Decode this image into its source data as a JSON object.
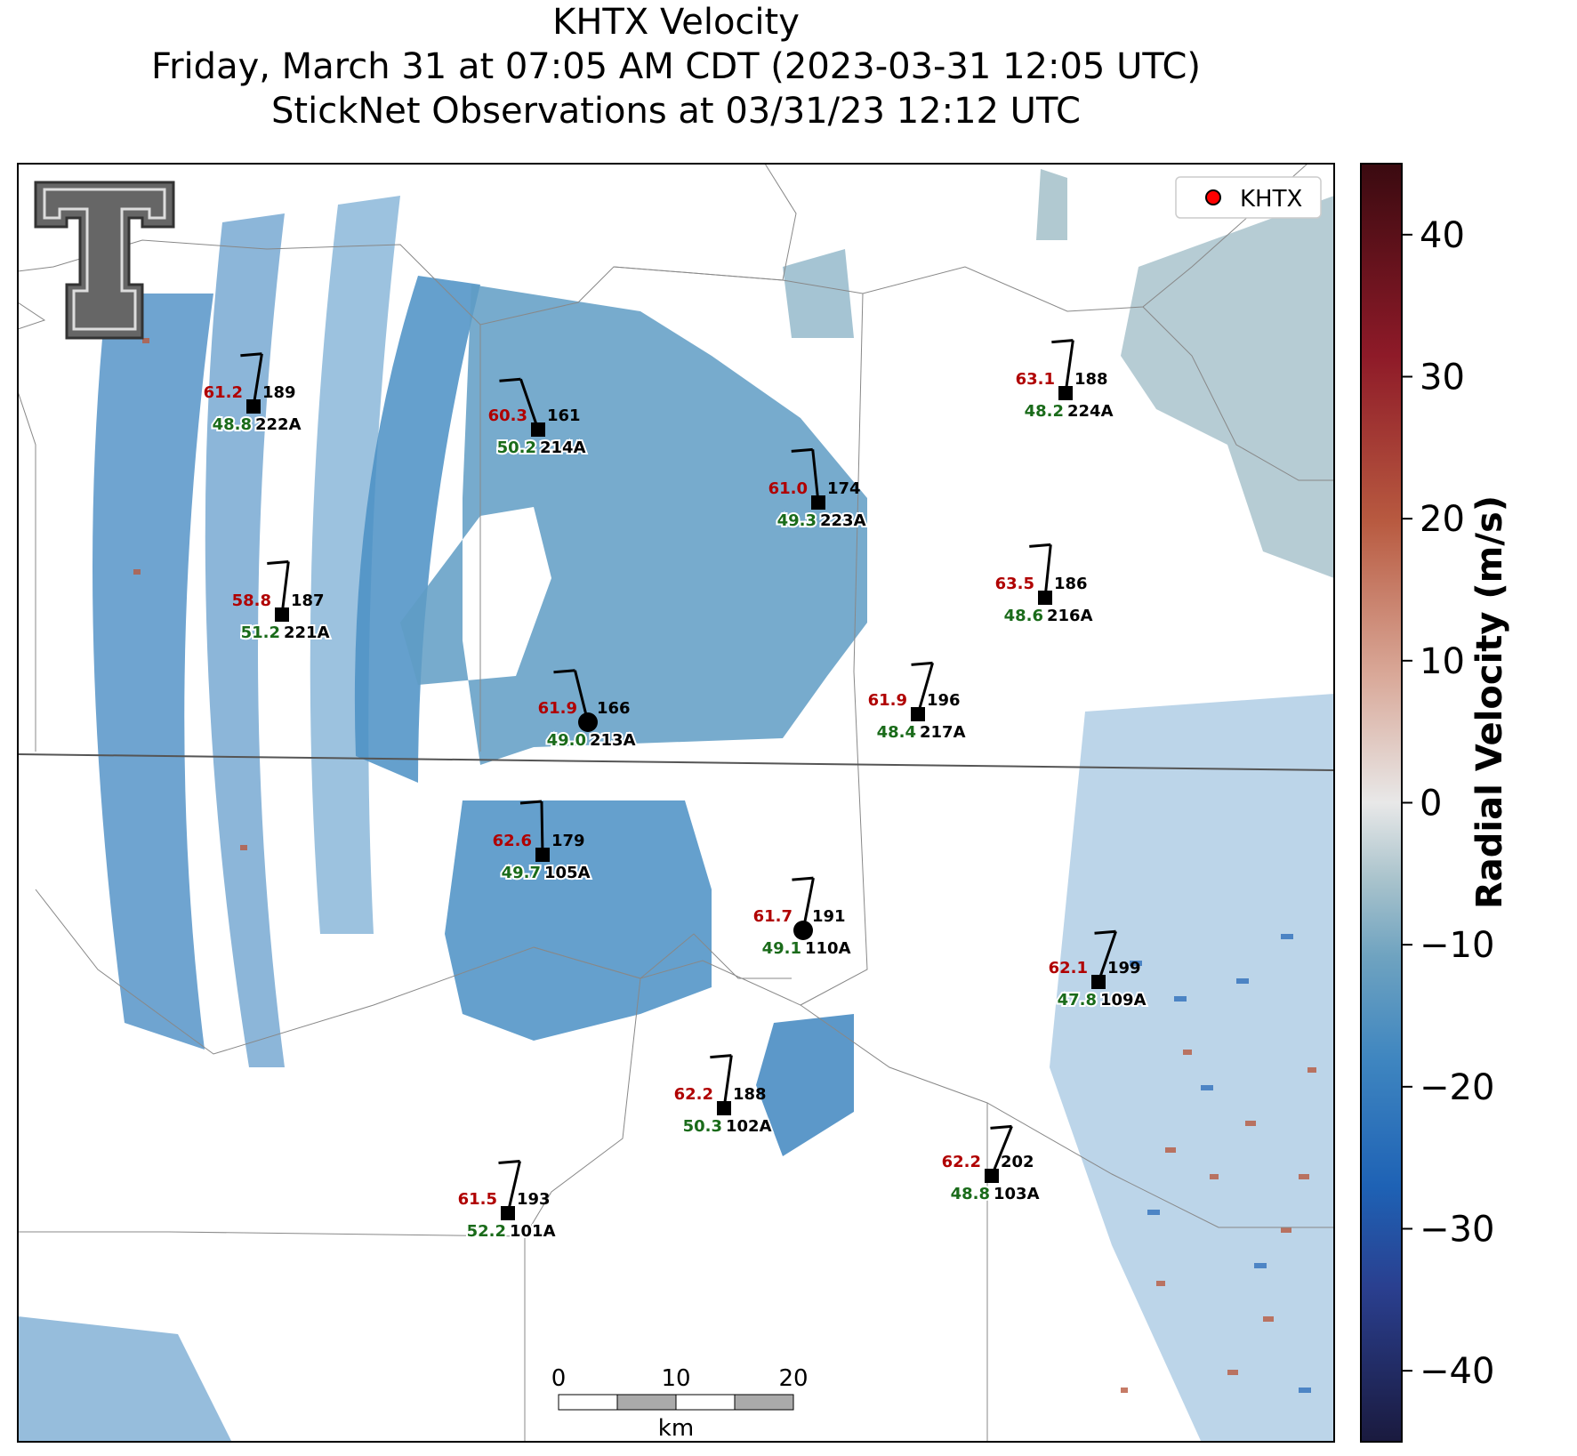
{
  "title": {
    "line1": "KHTX Velocity",
    "line2": "Friday, March 31 at 07:05 AM CDT (2023-03-31 12:05 UTC)",
    "line3": "StickNet Observations at 03/31/23 12:12 UTC"
  },
  "legend": {
    "label": "KHTX",
    "marker_color": "#ff0000"
  },
  "colorbar": {
    "title": "Radial Velocity (m/s)",
    "range": [
      -45,
      45
    ],
    "ticks": [
      40,
      30,
      20,
      10,
      0,
      -10,
      -20,
      -30,
      -40
    ],
    "tick_labels": [
      "40",
      "30",
      "20",
      "10",
      "0",
      "−10",
      "−20",
      "−30",
      "−40"
    ],
    "colors": [
      "#1a1a3e",
      "#2a3f8f",
      "#1e62b5",
      "#3f86c0",
      "#6fa3c0",
      "#a9c3cc",
      "#e8e8e8",
      "#d9a898",
      "#b85a40",
      "#8e1a28",
      "#3a0a10"
    ]
  },
  "scale_bar": {
    "labels": [
      "0",
      "10",
      "20"
    ],
    "unit": "km"
  },
  "stations": [
    {
      "id": "222A",
      "red": "61.2",
      "green": "48.8",
      "dir": "189"
    },
    {
      "id": "214A",
      "red": "60.3",
      "green": "50.2",
      "dir": "161"
    },
    {
      "id": "223A",
      "red": "61.0",
      "green": "49.3",
      "dir": "174"
    },
    {
      "id": "224A",
      "red": "63.1",
      "green": "48.2",
      "dir": "188"
    },
    {
      "id": "221A",
      "red": "58.8",
      "green": "51.2",
      "dir": "187"
    },
    {
      "id": "216A",
      "red": "63.5",
      "green": "48.6",
      "dir": "186"
    },
    {
      "id": "213A",
      "red": "61.9",
      "green": "49.0",
      "dir": "166"
    },
    {
      "id": "217A",
      "red": "61.9",
      "green": "48.4",
      "dir": "196"
    },
    {
      "id": "105A",
      "red": "62.6",
      "green": "49.7",
      "dir": "179"
    },
    {
      "id": "110A",
      "red": "61.7",
      "green": "49.1",
      "dir": "191"
    },
    {
      "id": "109A",
      "red": "62.1",
      "green": "47.8",
      "dir": "199"
    },
    {
      "id": "102A",
      "red": "62.2",
      "green": "50.3",
      "dir": "188"
    },
    {
      "id": "103A",
      "red": "62.2",
      "green": "48.8",
      "dir": "202"
    },
    {
      "id": "101A",
      "red": "61.5",
      "green": "52.2",
      "dir": "193"
    }
  ]
}
